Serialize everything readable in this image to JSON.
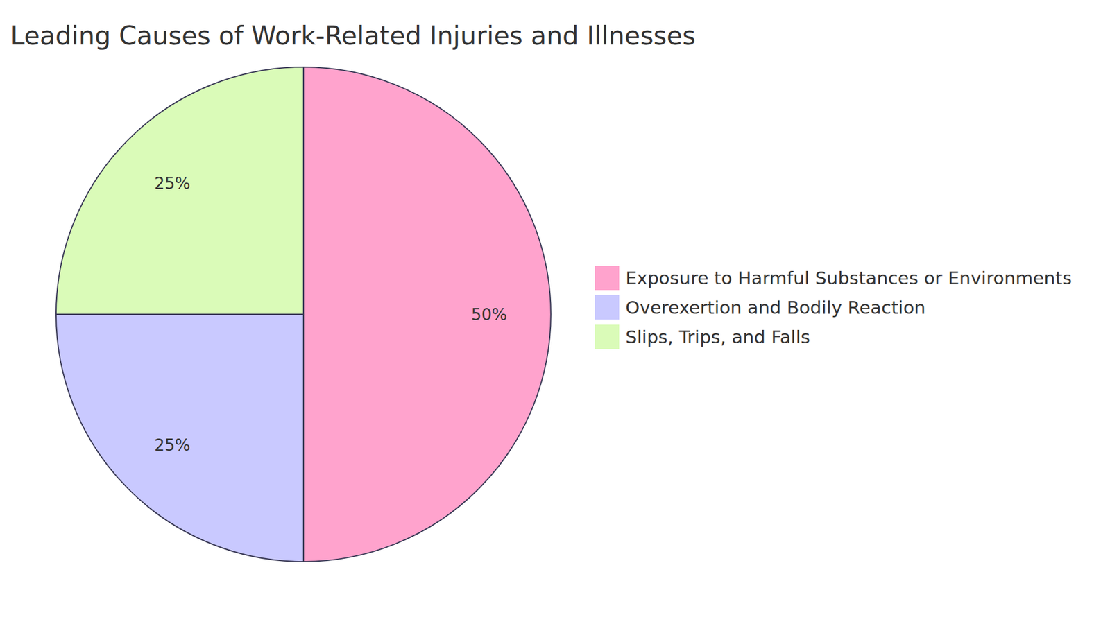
{
  "chart_data": {
    "type": "pie",
    "title": "Leading Causes of Work-Related Injuries and Illnesses",
    "categories": [
      "Exposure to Harmful Substances or Environments",
      "Overexertion and Bodily Reaction",
      "Slips, Trips, and Falls"
    ],
    "values": [
      50,
      25,
      25
    ],
    "value_labels": [
      "50%",
      "25%",
      "25%"
    ],
    "colors": [
      "#ffa3cd",
      "#c9c9ff",
      "#dafbb8"
    ],
    "data_labels": true,
    "legend": "right"
  }
}
